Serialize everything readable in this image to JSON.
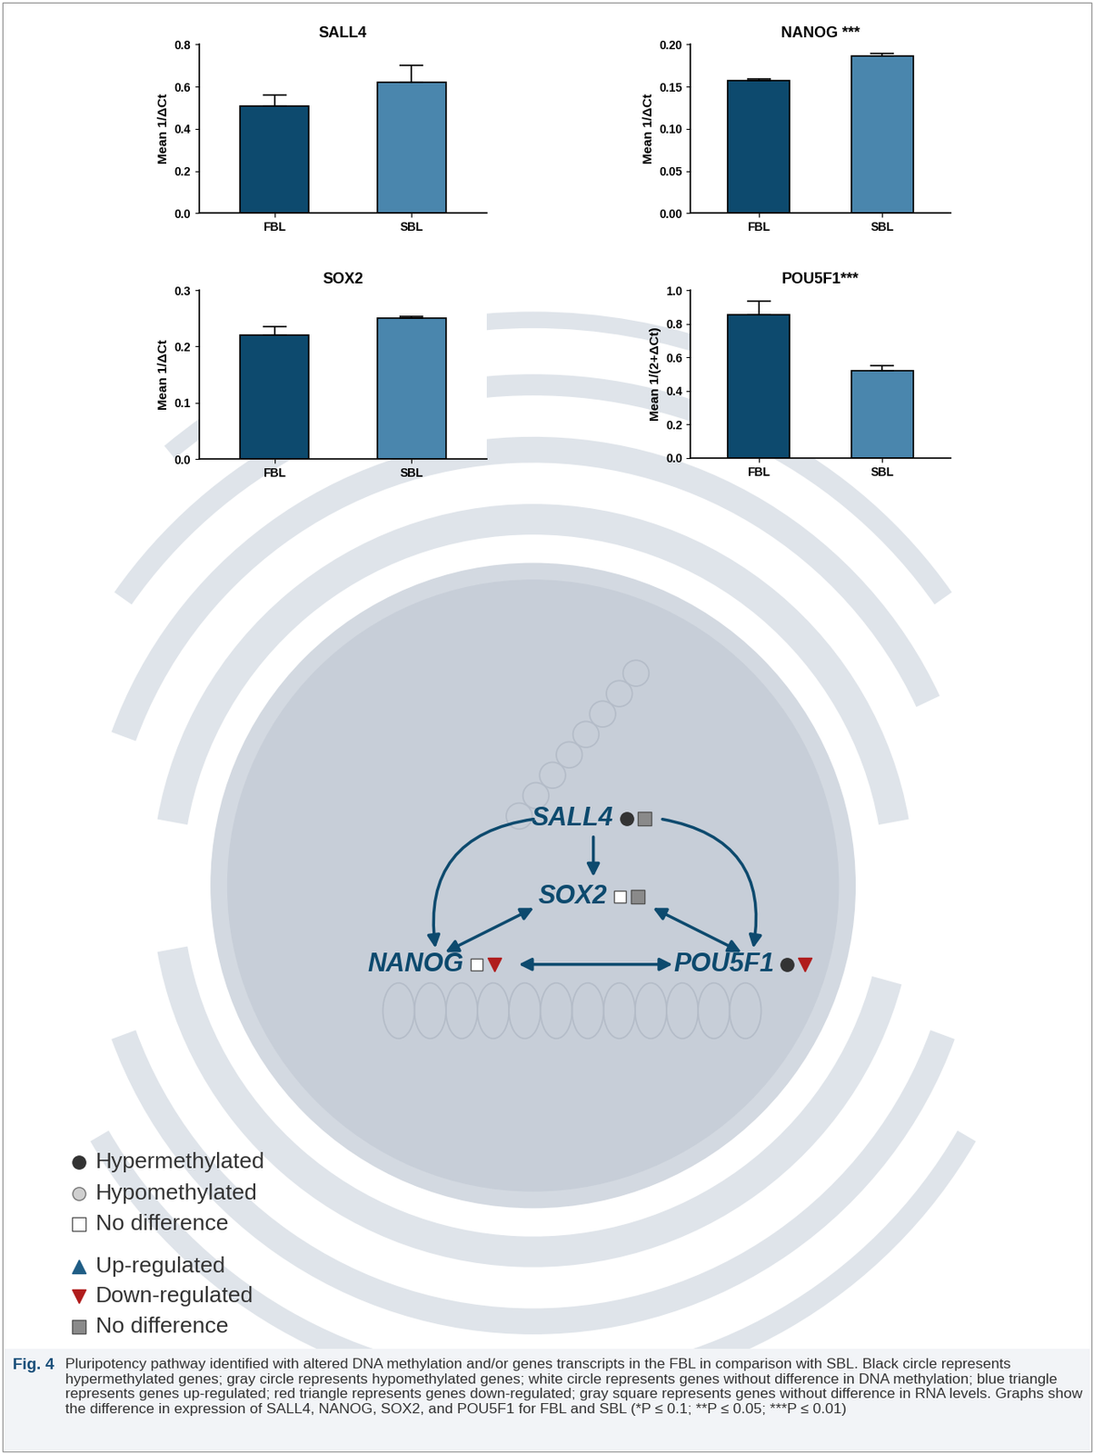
{
  "chart_data": [
    {
      "type": "bar",
      "title": "SALL4",
      "y_label": "Mean 1/ΔCt",
      "categories": [
        "FBL",
        "SBL"
      ],
      "values": [
        0.51,
        0.62
      ],
      "errors": [
        0.05,
        0.08
      ],
      "colors": [
        "#0d4a6e",
        "#4a86ad"
      ],
      "ylim": [
        0,
        0.8
      ],
      "yticks": [
        {
          "value": 0,
          "label": "0.0"
        },
        0.2,
        0.4,
        0.6,
        0.8
      ]
    },
    {
      "type": "bar",
      "title": "NANOG ***",
      "y_label": "Mean 1/ΔCt",
      "categories": [
        "FBL",
        "SBL"
      ],
      "values": [
        0.157,
        0.186
      ],
      "errors": [
        0.002,
        0.003
      ],
      "colors": [
        "#0d4a6e",
        "#4a86ad"
      ],
      "ylim": [
        0,
        0.2
      ],
      "yticks": [
        {
          "value": 0,
          "label": "0.00"
        },
        {
          "value": 0.05,
          "label": "0.05"
        },
        {
          "value": 0.1,
          "label": "0.10"
        },
        {
          "value": 0.15,
          "label": "0.15"
        },
        {
          "value": 0.2,
          "label": "0.20"
        }
      ]
    },
    {
      "type": "bar",
      "title": "SOX2",
      "y_label": "Mean 1/ΔCt",
      "categories": [
        "FBL",
        "SBL"
      ],
      "values": [
        0.22,
        0.25
      ],
      "errors": [
        0.015,
        0.004
      ],
      "colors": [
        "#0d4a6e",
        "#4a86ad"
      ],
      "ylim": [
        0,
        0.3
      ],
      "yticks": [
        {
          "value": 0,
          "label": "0.0"
        },
        0.1,
        0.2,
        0.3
      ]
    },
    {
      "type": "bar",
      "title": "POU5F1***",
      "y_label": "Mean 1/(2+ΔCt)",
      "categories": [
        "FBL",
        "SBL"
      ],
      "values": [
        0.855,
        0.52
      ],
      "errors": [
        0.08,
        0.03
      ],
      "colors": [
        "#0d4a6e",
        "#4a86ad"
      ],
      "ylim": [
        0,
        1.0
      ],
      "yticks": [
        {
          "value": 0,
          "label": "0.0"
        },
        0.2,
        0.4,
        0.6,
        0.8,
        {
          "value": 1.0,
          "label": "1.0"
        }
      ]
    }
  ],
  "diagram": {
    "nodes": [
      {
        "label": "SALL4",
        "methylation": "Hypermethylated",
        "expression": "No difference"
      },
      {
        "label": "SOX2",
        "methylation": "No difference",
        "expression": "No difference"
      },
      {
        "label": "NANOG",
        "methylation": "No difference",
        "expression": "Down-regulated"
      },
      {
        "label": "POU5F1",
        "methylation": "Hypermethylated",
        "expression": "Down-regulated"
      }
    ],
    "edges": [
      {
        "from": 0,
        "to": 2,
        "both": false
      },
      {
        "from": 0,
        "to": 1,
        "both": false
      },
      {
        "from": 0,
        "to": 3,
        "both": false
      },
      {
        "from": 1,
        "to": 2,
        "both": true
      },
      {
        "from": 1,
        "to": 3,
        "both": true
      },
      {
        "from": 2,
        "to": 3,
        "both": true
      }
    ],
    "legend": {
      "methylation": [
        "Hypermethylated",
        "Hypomethylated",
        "No difference"
      ],
      "expression": [
        "Up-regulated",
        "Down-regulated",
        "No difference"
      ]
    }
  },
  "caption": {
    "label": "Fig. 4",
    "text": "Pluripotency pathway identified with altered DNA methylation and/or genes transcripts in the FBL in comparison with SBL. Black circle represents hypermethylated genes; gray circle represents hypomethylated genes; white circle represents genes without difference in DNA methylation; blue triangle represents genes up-regulated; red triangle represents genes down-regulated; gray square represents genes without difference in RNA levels. Graphs show the difference in expression of SALL4, NANOG, SOX2, and POU5F1 for FBL and SBL (*P ≤ 0.1; **P ≤ 0.05; ***P ≤ 0.01)"
  }
}
